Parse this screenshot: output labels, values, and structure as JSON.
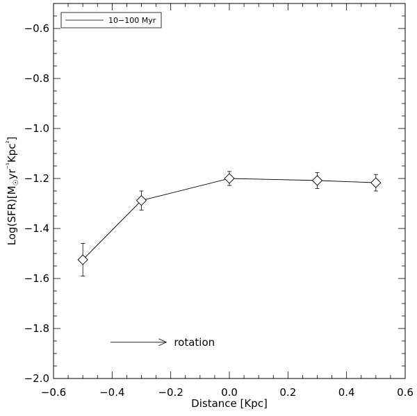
{
  "chart_data": {
    "type": "line",
    "title": "",
    "xlabel": "Distance [Kpc]",
    "ylabel": "Log(SFR)[M☉yr⁻¹Kpc²]",
    "xlim": [
      -0.6,
      0.6
    ],
    "ylim": [
      -2.0,
      -0.5
    ],
    "x_ticks": [
      -0.6,
      -0.4,
      -0.2,
      0.0,
      0.2,
      0.4,
      0.6
    ],
    "x_tick_labels": [
      "−0.6",
      "−0.4",
      "−0.2",
      "0.0",
      "0.2",
      "0.4",
      "0.6"
    ],
    "y_ticks": [
      -2.0,
      -1.8,
      -1.6,
      -1.4,
      -1.2,
      -1.0,
      -0.8,
      -0.6
    ],
    "y_tick_labels": [
      "−2.0",
      "−1.8",
      "−1.6",
      "−1.4",
      "−1.2",
      "−1.0",
      "−0.8",
      "−0.6"
    ],
    "grid": false,
    "legend_position": "top-left",
    "series": [
      {
        "name": "10−100 Myr",
        "marker": "diamond",
        "color": "#000000",
        "x": [
          -0.5,
          -0.3,
          0.0,
          0.3,
          0.5
        ],
        "y": [
          -1.525,
          -1.288,
          -1.2,
          -1.208,
          -1.217
        ],
        "yerr": [
          0.065,
          0.038,
          0.028,
          0.032,
          0.033
        ]
      }
    ],
    "annotations": [
      {
        "text": "rotation",
        "type": "arrow",
        "x_start": -0.405,
        "x_end": -0.215,
        "y": -1.855
      }
    ]
  }
}
